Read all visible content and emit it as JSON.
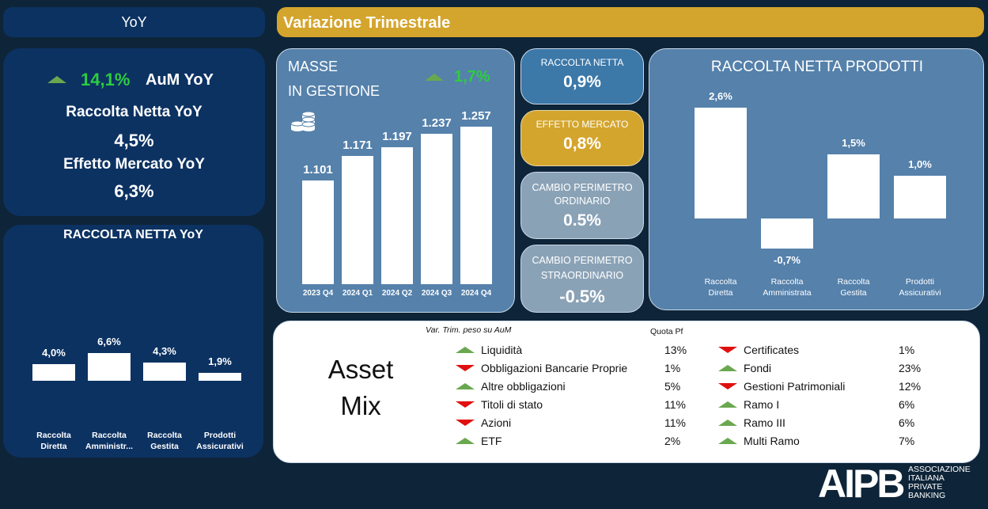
{
  "header": {
    "yoy": "YoY",
    "variazione": "Variazione Trimestrale"
  },
  "yoy_card": {
    "aum_value": "14,1%",
    "aum_label": "AuM YoY",
    "raccolta_label": "Raccolta Netta YoY",
    "raccolta_value": "4,5%",
    "effetto_label": "Effetto Mercato YoY",
    "effetto_value": "6,3%"
  },
  "raccolta_yoy": {
    "title": "RACCOLTA NETTA YoY",
    "chart_data": {
      "type": "bar",
      "categories": [
        "Raccolta Diretta",
        "Raccolta Amministr...",
        "Raccolta Gestita",
        "Prodotti Assicurativi"
      ],
      "values": [
        4.0,
        6.6,
        4.3,
        1.9
      ],
      "labels": [
        "4,0%",
        "6,6%",
        "4,3%",
        "1,9%"
      ]
    }
  },
  "masse": {
    "title_line1": "MASSE",
    "title_line2": "IN GESTIONE",
    "change": "1,7%",
    "icon": "coins-icon",
    "chart_data": {
      "type": "bar",
      "categories": [
        "2023 Q4",
        "2024 Q1",
        "2024 Q2",
        "2024 Q3",
        "2024 Q4"
      ],
      "values": [
        1101,
        1171,
        1197,
        1237,
        1257
      ],
      "labels": [
        "1.101",
        "1.171",
        "1.197",
        "1.237",
        "1.257"
      ]
    }
  },
  "mid_cards": {
    "raccolta_label": "RACCOLTA NETTA",
    "raccolta_value": "0,9%",
    "effetto_label": "EFFETTO MERCATO",
    "effetto_value": "0,8%",
    "ordinario_label1": "CAMBIO PERIMETRO",
    "ordinario_label2": "ORDINARIO",
    "ordinario_value": "0.5%",
    "straord_label1": "CAMBIO PERIMETRO",
    "straord_label2": "STRAORDINARIO",
    "straord_value": "-0.5%"
  },
  "rnp": {
    "title": "RACCOLTA NETTA PRODOTTI",
    "chart_data": {
      "type": "bar",
      "categories": [
        "Raccolta Diretta",
        "Raccolta Amministrata",
        "Raccolta Gestita",
        "Prodotti Assicurativi"
      ],
      "values": [
        2.6,
        -0.7,
        1.5,
        1.0
      ],
      "labels": [
        "2,6%",
        "-0,7%",
        "1,5%",
        "1,0%"
      ]
    }
  },
  "asset_mix": {
    "title_line1": "Asset",
    "title_line2": "Mix",
    "var_header": "Var. Trim. peso su AuM",
    "quota_header": "Quota Pf",
    "left": [
      {
        "name": "Liquidità",
        "pct": "13%",
        "dir": "up"
      },
      {
        "name": "Obbligazioni Bancarie Proprie",
        "pct": "1%",
        "dir": "down"
      },
      {
        "name": "Altre obbligazioni",
        "pct": "5%",
        "dir": "up"
      },
      {
        "name": "Titoli di stato",
        "pct": "11%",
        "dir": "down"
      },
      {
        "name": "Azioni",
        "pct": "11%",
        "dir": "down"
      },
      {
        "name": "ETF",
        "pct": "2%",
        "dir": "up"
      }
    ],
    "right": [
      {
        "name": "Certificates",
        "pct": "1%",
        "dir": "down"
      },
      {
        "name": "Fondi",
        "pct": "23%",
        "dir": "up"
      },
      {
        "name": "Gestioni Patrimoniali",
        "pct": "12%",
        "dir": "down"
      },
      {
        "name": "Ramo I",
        "pct": "6%",
        "dir": "up"
      },
      {
        "name": "Ramo III",
        "pct": "6%",
        "dir": "up"
      },
      {
        "name": "Multi Ramo",
        "pct": "7%",
        "dir": "up"
      }
    ]
  },
  "logo": {
    "mark": "AIPB",
    "line1": "ASSOCIAZIONE",
    "line2": "ITALIANA",
    "line3": "PRIVATE",
    "line4": "BANKING"
  },
  "colors": {
    "up": "#6aa84f",
    "down": "#e01010",
    "gold": "#d4a52d",
    "navy": "#0c3262",
    "steel": "#5581ab"
  }
}
